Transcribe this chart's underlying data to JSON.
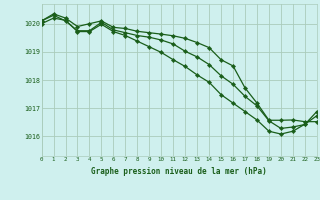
{
  "title": "Graphe pression niveau de la mer (hPa)",
  "bg_color": "#cff0ee",
  "grid_color": "#aaccbb",
  "line_color": "#1a5e1a",
  "marker_color": "#1a5e1a",
  "xlim": [
    0,
    23
  ],
  "ylim": [
    1015.3,
    1020.7
  ],
  "xticks": [
    0,
    1,
    2,
    3,
    4,
    5,
    6,
    7,
    8,
    9,
    10,
    11,
    12,
    13,
    14,
    15,
    16,
    17,
    18,
    19,
    20,
    21,
    22,
    23
  ],
  "yticks": [
    1016,
    1017,
    1018,
    1019,
    1020
  ],
  "series1": {
    "x": [
      0,
      1,
      2,
      3,
      4,
      5,
      6,
      7,
      8,
      9,
      10,
      11,
      12,
      13,
      14,
      15,
      16,
      17,
      18,
      19,
      20,
      21,
      22,
      23
    ],
    "y": [
      1020.1,
      1020.35,
      1020.2,
      1019.9,
      1020.0,
      1020.1,
      1019.87,
      1019.83,
      1019.73,
      1019.68,
      1019.63,
      1019.57,
      1019.48,
      1019.33,
      1019.15,
      1018.72,
      1018.5,
      1017.72,
      1017.18,
      1016.57,
      1016.57,
      1016.58,
      1016.52,
      1016.52
    ]
  },
  "series2": {
    "x": [
      0,
      1,
      2,
      3,
      4,
      5,
      6,
      7,
      8,
      9,
      10,
      11,
      12,
      13,
      14,
      15,
      16,
      17,
      18,
      19,
      20,
      21,
      22,
      23
    ],
    "y": [
      1020.1,
      1020.3,
      1020.1,
      1019.75,
      1019.75,
      1020.05,
      1019.78,
      1019.68,
      1019.58,
      1019.52,
      1019.42,
      1019.28,
      1019.02,
      1018.82,
      1018.55,
      1018.15,
      1017.85,
      1017.42,
      1017.08,
      1016.55,
      1016.28,
      1016.33,
      1016.42,
      1016.88
    ]
  },
  "series3": {
    "x": [
      0,
      1,
      2,
      3,
      4,
      5,
      6,
      7,
      8,
      9,
      10,
      11,
      12,
      13,
      14,
      15,
      16,
      17,
      18,
      19,
      20,
      21,
      22,
      23
    ],
    "y": [
      1020.0,
      1020.2,
      1020.12,
      1019.72,
      1019.72,
      1019.98,
      1019.72,
      1019.58,
      1019.38,
      1019.18,
      1018.98,
      1018.72,
      1018.48,
      1018.18,
      1017.92,
      1017.48,
      1017.18,
      1016.88,
      1016.58,
      1016.18,
      1016.08,
      1016.18,
      1016.43,
      1016.73
    ]
  }
}
